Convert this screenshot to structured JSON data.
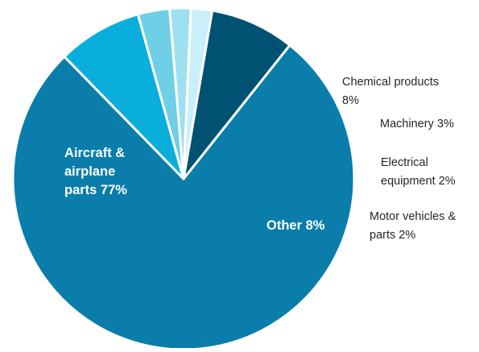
{
  "chart_data": {
    "type": "pie",
    "title": "",
    "legend": "none",
    "slices": [
      {
        "name": "Aircraft & airplane parts",
        "value": 77,
        "color": "#0a7dab",
        "label_lines": [
          "Aircraft &",
          "airplane",
          "parts 77%"
        ],
        "label_position": "inside"
      },
      {
        "name": "Chemical products",
        "value": 8,
        "color": "#0aaedc",
        "label_lines": [
          "Chemical products",
          "8%"
        ],
        "label_position": "outside"
      },
      {
        "name": "Machinery",
        "value": 3,
        "color": "#6ecfe6",
        "label_lines": [
          "Machinery 3%"
        ],
        "label_position": "outside"
      },
      {
        "name": "Electrical equipment",
        "value": 2,
        "color": "#9fe0f0",
        "label_lines": [
          "Electrical",
          "equipment 2%"
        ],
        "label_position": "outside"
      },
      {
        "name": "Motor vehicles & parts",
        "value": 2,
        "color": "#c8effa",
        "label_lines": [
          "Motor vehicles &",
          "parts 2%"
        ],
        "label_position": "outside"
      },
      {
        "name": "Other",
        "value": 8,
        "color": "#005273",
        "label_lines": [
          "Other 8%"
        ],
        "label_position": "inside"
      }
    ]
  }
}
